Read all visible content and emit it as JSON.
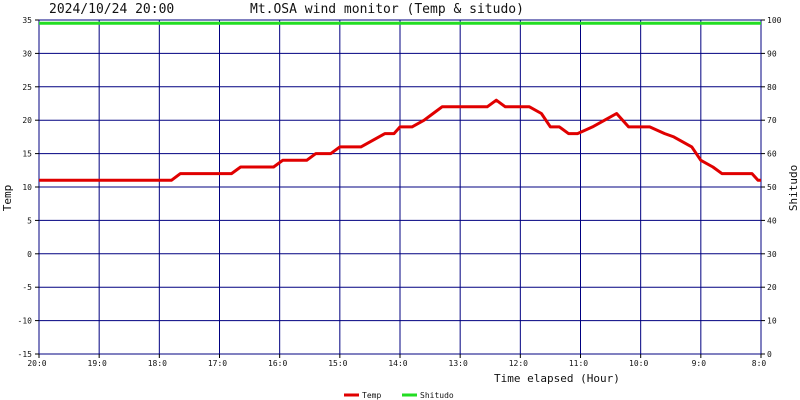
{
  "header": {
    "timestamp": "2024/10/24 20:00",
    "title": "Mt.OSA wind monitor (Temp & situdo)"
  },
  "chart_data": {
    "type": "line",
    "title": "Mt.OSA wind monitor (Temp & situdo)",
    "xlabel": "Time elapsed (Hour)",
    "ylabel_left": "Temp",
    "ylabel_right": "Shitudo",
    "x_range": [
      0,
      12
    ],
    "x_ticks": [
      {
        "x": 0,
        "label": "20:0"
      },
      {
        "x": 1,
        "label": "19:0"
      },
      {
        "x": 2,
        "label": "18:0"
      },
      {
        "x": 3,
        "label": "17:0"
      },
      {
        "x": 4,
        "label": "16:0"
      },
      {
        "x": 5,
        "label": "15:0"
      },
      {
        "x": 6,
        "label": "14:0"
      },
      {
        "x": 7,
        "label": "13:0"
      },
      {
        "x": 8,
        "label": "12:0"
      },
      {
        "x": 9,
        "label": "11:0"
      },
      {
        "x": 10,
        "label": "10:0"
      },
      {
        "x": 11,
        "label": "9:0"
      },
      {
        "x": 12,
        "label": "8:0"
      }
    ],
    "y_left": {
      "min": -15,
      "max": 35,
      "step": 5
    },
    "y_right": {
      "min": 0,
      "max": 100,
      "step": 10
    },
    "grid": true,
    "legend_position": "bottom-center",
    "series": [
      {
        "name": "Temp",
        "axis": "left",
        "color": "#e00000",
        "points": [
          [
            0.0,
            11
          ],
          [
            2.2,
            11
          ],
          [
            2.35,
            12
          ],
          [
            3.2,
            12
          ],
          [
            3.35,
            13
          ],
          [
            3.9,
            13
          ],
          [
            4.05,
            14
          ],
          [
            4.45,
            14
          ],
          [
            4.6,
            15
          ],
          [
            4.85,
            15
          ],
          [
            5.0,
            16
          ],
          [
            5.35,
            16
          ],
          [
            5.65,
            17.5
          ],
          [
            5.75,
            18
          ],
          [
            5.9,
            18
          ],
          [
            6.0,
            19
          ],
          [
            6.2,
            19
          ],
          [
            6.4,
            20
          ],
          [
            6.55,
            21
          ],
          [
            6.7,
            22
          ],
          [
            7.1,
            22
          ],
          [
            7.45,
            22
          ],
          [
            7.6,
            23
          ],
          [
            7.75,
            22
          ],
          [
            8.15,
            22
          ],
          [
            8.35,
            21
          ],
          [
            8.5,
            19
          ],
          [
            8.65,
            19
          ],
          [
            8.8,
            18
          ],
          [
            8.95,
            18
          ],
          [
            9.2,
            19
          ],
          [
            9.4,
            20
          ],
          [
            9.6,
            21
          ],
          [
            9.8,
            19
          ],
          [
            10.15,
            19
          ],
          [
            10.4,
            18
          ],
          [
            10.55,
            17.5
          ],
          [
            10.85,
            16
          ],
          [
            11.0,
            14
          ],
          [
            11.2,
            13
          ],
          [
            11.35,
            12
          ],
          [
            11.85,
            12
          ],
          [
            11.95,
            11
          ],
          [
            12.0,
            11
          ]
        ]
      },
      {
        "name": "Shitudo",
        "axis": "right",
        "color": "#22dd22",
        "points": [
          [
            0.0,
            99
          ],
          [
            12.0,
            99
          ]
        ]
      }
    ]
  }
}
